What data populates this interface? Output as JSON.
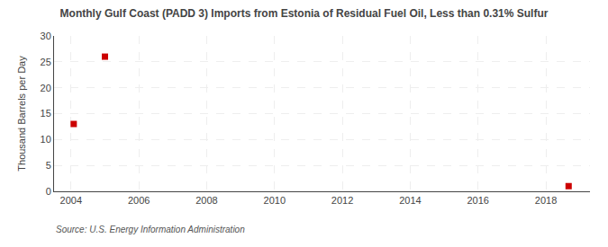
{
  "chart_data": {
    "type": "scatter",
    "title": "Monthly Gulf Coast (PADD 3) Imports from Estonia of Residual Fuel Oil, Less than 0.31% Sulfur",
    "y_label": "Thousand Barrels per Day",
    "annotations": [
      "Source: U.S. Energy Information Administration"
    ],
    "x": [
      2004.08,
      2005.0,
      2018.67
    ],
    "values": [
      13,
      26,
      1
    ],
    "color": "#cc0000",
    "marker": "square",
    "xlim": [
      2003.5,
      2019.3
    ],
    "xticks": [
      2004,
      2006,
      2008,
      2010,
      2012,
      2014,
      2016,
      2018
    ],
    "ylim": [
      0,
      30
    ],
    "yticks": [
      0,
      5,
      10,
      15,
      20,
      25,
      30
    ],
    "grid": true
  }
}
